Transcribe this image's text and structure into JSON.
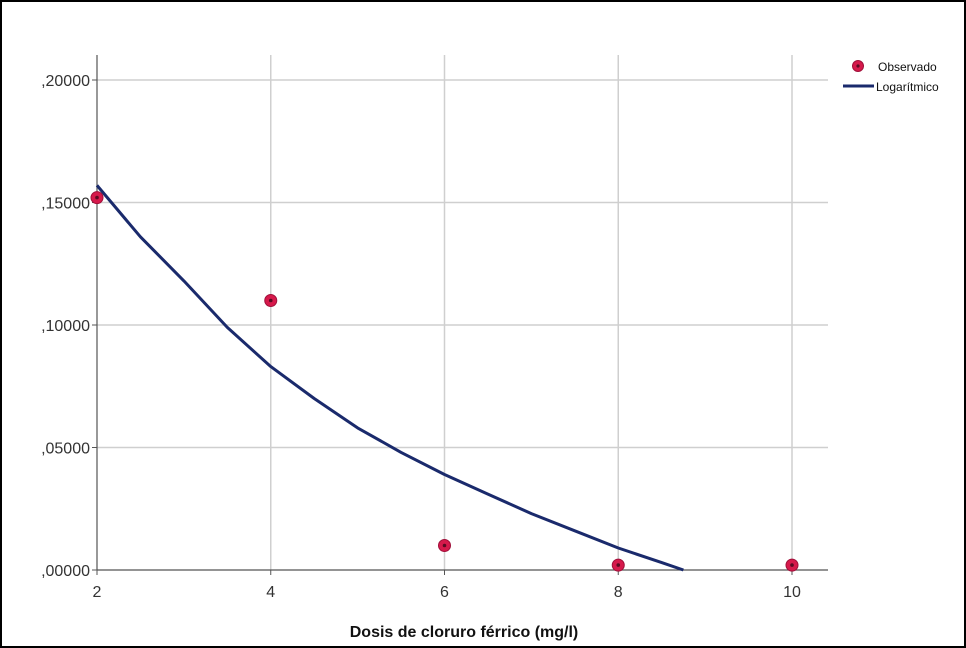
{
  "chart_data": {
    "type": "scatter",
    "xlabel": "Dosis de  cloruro férrico (mg/l)",
    "ylabel": "",
    "title": "",
    "xlim": [
      2,
      10.4
    ],
    "ylim": [
      0,
      0.21
    ],
    "x_ticks": [
      2,
      4,
      6,
      8,
      10
    ],
    "x_tick_labels": [
      "2",
      "4",
      "6",
      "8",
      "10"
    ],
    "y_ticks": [
      0,
      0.05,
      0.1,
      0.15,
      0.2
    ],
    "y_tick_labels": [
      ",00000",
      ",05000",
      ",10000",
      ",15000",
      ",20000"
    ],
    "grid": true,
    "legend_position": "top-right",
    "series": [
      {
        "name": "Observado",
        "kind": "points",
        "color": "#d6194b",
        "x": [
          2,
          4,
          6,
          8,
          10
        ],
        "y": [
          0.152,
          0.11,
          0.01,
          0.002,
          0.002
        ]
      },
      {
        "name": "Logarítmico",
        "kind": "line",
        "color": "#1a2a6c",
        "x": [
          2,
          2.5,
          3,
          3.5,
          4,
          4.5,
          5,
          5.5,
          6,
          6.5,
          7,
          7.5,
          8,
          8.5,
          8.75
        ],
        "y": [
          0.157,
          0.136,
          0.118,
          0.099,
          0.083,
          0.07,
          0.058,
          0.048,
          0.039,
          0.031,
          0.023,
          0.016,
          0.009,
          0.003,
          0.0
        ]
      }
    ]
  }
}
